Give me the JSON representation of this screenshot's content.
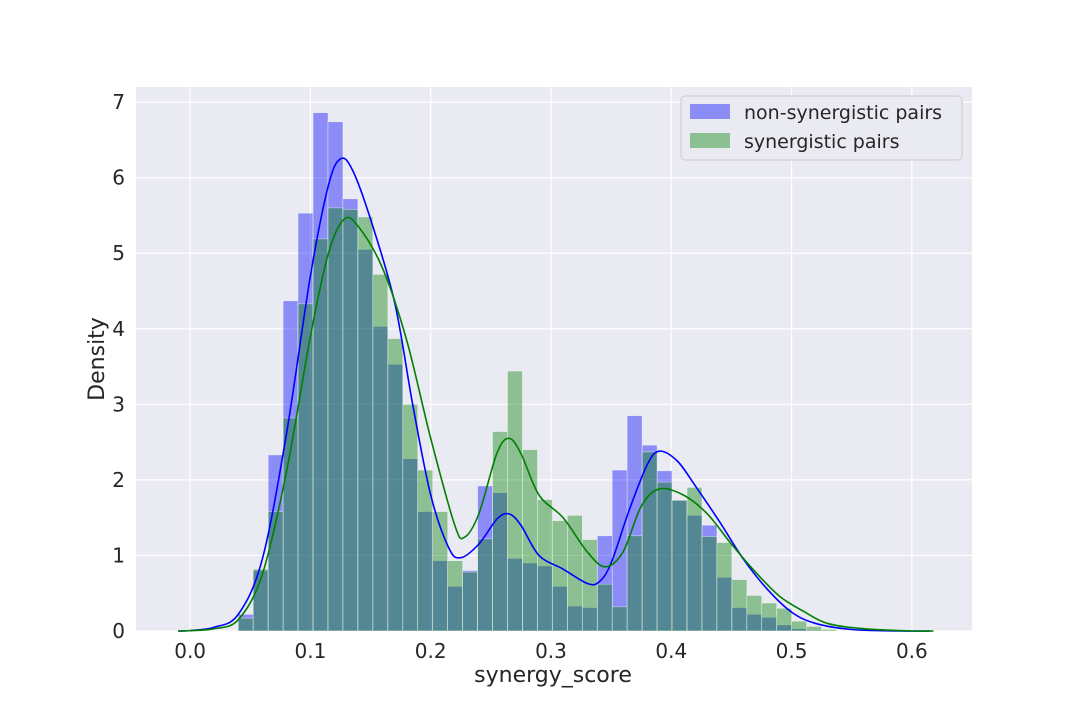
{
  "chart_data": {
    "type": "bar",
    "subtype": "histogram-with-kde",
    "xlabel": "synergy_score",
    "ylabel": "Density",
    "xlim": [
      -0.045,
      0.65
    ],
    "ylim": [
      0,
      7.2
    ],
    "x_ticks": [
      0.0,
      0.1,
      0.2,
      0.3,
      0.4,
      0.5,
      0.6
    ],
    "x_tick_labels": [
      "0.0",
      "0.1",
      "0.2",
      "0.3",
      "0.4",
      "0.5",
      "0.6"
    ],
    "y_ticks": [
      0,
      1,
      2,
      3,
      4,
      5,
      6,
      7
    ],
    "y_tick_labels": [
      "0",
      "1",
      "2",
      "3",
      "4",
      "5",
      "6",
      "7"
    ],
    "grid": true,
    "legend_position": "top-right",
    "bin_width": 0.01243,
    "bin_left_edges": [
      0.04,
      0.0524,
      0.0649,
      0.0773,
      0.0897,
      0.1022,
      0.1146,
      0.127,
      0.1395,
      0.1519,
      0.1644,
      0.1768,
      0.1892,
      0.2017,
      0.2141,
      0.2265,
      0.239,
      0.2514,
      0.2638,
      0.2763,
      0.2887,
      0.3011,
      0.3136,
      0.326,
      0.3385,
      0.3509,
      0.3633,
      0.3758,
      0.3882,
      0.4006,
      0.4131,
      0.4255,
      0.4379,
      0.4504,
      0.4628,
      0.4752,
      0.4877,
      0.5001,
      0.5125,
      0.525
    ],
    "series": [
      {
        "name": "non-synergistic pairs",
        "color": "#0000ff",
        "values": [
          0.22,
          0.8,
          2.33,
          4.37,
          5.53,
          6.86,
          6.74,
          5.72,
          5.05,
          4.03,
          3.53,
          2.28,
          1.58,
          0.93,
          0.59,
          0.8,
          1.92,
          1.83,
          0.96,
          0.9,
          0.86,
          0.59,
          0.33,
          0.31,
          1.26,
          2.13,
          2.85,
          2.46,
          2.12,
          1.73,
          1.53,
          1.4,
          0.71,
          0.31,
          0.22,
          0.18,
          0.08,
          0.03,
          0.01,
          0.0
        ],
        "kde": [
          [
            -0.01,
            0.0
          ],
          [
            0.0,
            0.005
          ],
          [
            0.02,
            0.05
          ],
          [
            0.04,
            0.22
          ],
          [
            0.06,
            0.95
          ],
          [
            0.08,
            2.6
          ],
          [
            0.1,
            4.7
          ],
          [
            0.115,
            5.9
          ],
          [
            0.125,
            6.25
          ],
          [
            0.135,
            6.1
          ],
          [
            0.15,
            5.45
          ],
          [
            0.17,
            4.35
          ],
          [
            0.185,
            3.0
          ],
          [
            0.2,
            1.8
          ],
          [
            0.215,
            1.1
          ],
          [
            0.225,
            0.97
          ],
          [
            0.24,
            1.15
          ],
          [
            0.255,
            1.48
          ],
          [
            0.265,
            1.55
          ],
          [
            0.275,
            1.4
          ],
          [
            0.29,
            1.0
          ],
          [
            0.31,
            0.82
          ],
          [
            0.33,
            0.63
          ],
          [
            0.34,
            0.65
          ],
          [
            0.35,
            0.9
          ],
          [
            0.365,
            1.6
          ],
          [
            0.38,
            2.2
          ],
          [
            0.39,
            2.38
          ],
          [
            0.405,
            2.25
          ],
          [
            0.42,
            1.92
          ],
          [
            0.44,
            1.45
          ],
          [
            0.46,
            0.95
          ],
          [
            0.48,
            0.55
          ],
          [
            0.5,
            0.25
          ],
          [
            0.52,
            0.1
          ],
          [
            0.55,
            0.02
          ],
          [
            0.59,
            0.0
          ],
          [
            0.615,
            0.0
          ]
        ]
      },
      {
        "name": "synergistic pairs",
        "color": "#008000",
        "values": [
          0.17,
          0.82,
          1.58,
          2.82,
          4.33,
          5.19,
          5.6,
          5.58,
          5.48,
          4.72,
          3.87,
          3.0,
          2.13,
          1.58,
          0.93,
          0.78,
          1.22,
          2.64,
          3.44,
          2.4,
          1.74,
          1.46,
          1.53,
          1.21,
          0.62,
          0.32,
          1.26,
          2.37,
          1.97,
          1.73,
          1.9,
          1.25,
          1.17,
          0.68,
          0.47,
          0.37,
          0.3,
          0.13,
          0.06,
          0.02
        ],
        "kde": [
          [
            -0.01,
            0.0
          ],
          [
            0.0,
            0.005
          ],
          [
            0.02,
            0.03
          ],
          [
            0.04,
            0.15
          ],
          [
            0.06,
            0.75
          ],
          [
            0.08,
            2.1
          ],
          [
            0.1,
            3.9
          ],
          [
            0.115,
            5.0
          ],
          [
            0.128,
            5.45
          ],
          [
            0.14,
            5.35
          ],
          [
            0.16,
            4.8
          ],
          [
            0.18,
            3.85
          ],
          [
            0.2,
            2.55
          ],
          [
            0.22,
            1.4
          ],
          [
            0.228,
            1.24
          ],
          [
            0.24,
            1.55
          ],
          [
            0.255,
            2.35
          ],
          [
            0.265,
            2.55
          ],
          [
            0.275,
            2.35
          ],
          [
            0.29,
            1.8
          ],
          [
            0.31,
            1.5
          ],
          [
            0.33,
            1.05
          ],
          [
            0.345,
            0.85
          ],
          [
            0.36,
            1.05
          ],
          [
            0.375,
            1.65
          ],
          [
            0.39,
            1.88
          ],
          [
            0.41,
            1.8
          ],
          [
            0.43,
            1.55
          ],
          [
            0.45,
            1.15
          ],
          [
            0.47,
            0.78
          ],
          [
            0.49,
            0.46
          ],
          [
            0.51,
            0.26
          ],
          [
            0.53,
            0.1
          ],
          [
            0.56,
            0.03
          ],
          [
            0.6,
            0.0
          ],
          [
            0.618,
            0.0
          ]
        ]
      }
    ]
  }
}
